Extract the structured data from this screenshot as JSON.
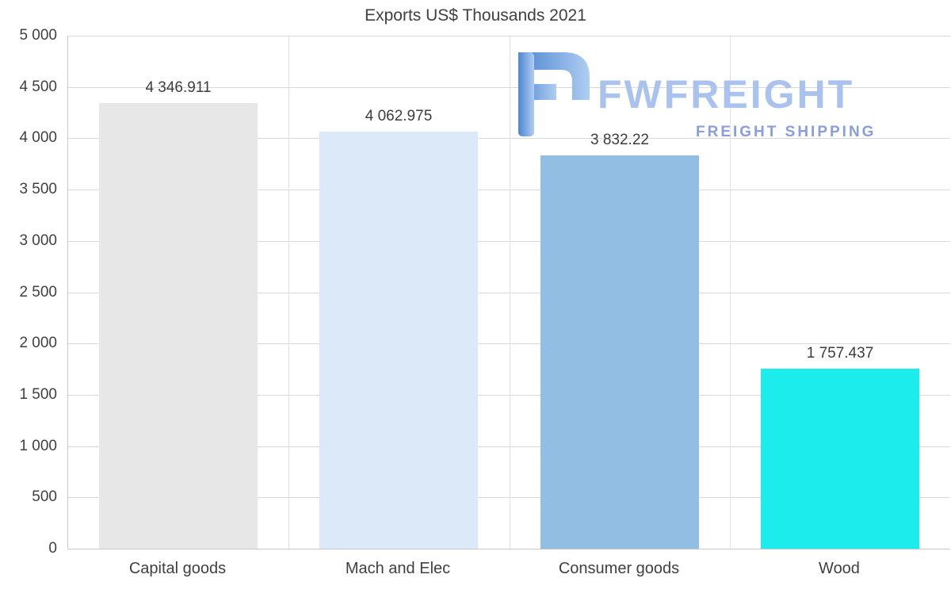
{
  "chart_data": {
    "type": "bar",
    "title": "Exports US$ Thousands 2021",
    "categories": [
      "Capital goods",
      "Mach and Elec",
      "Consumer goods",
      "Wood"
    ],
    "values": [
      4346.911,
      4062.975,
      3832.22,
      1757.437
    ],
    "value_labels": [
      "4 346.911",
      "4 062.975",
      "3 832.22",
      "1 757.437"
    ],
    "bar_colors": [
      "#e7e7e7",
      "#dce9f9",
      "#93bee3",
      "#1cecec"
    ],
    "xlabel": "",
    "ylabel": "",
    "ylim": [
      0,
      5000
    ],
    "ytick_step": 500,
    "ytick_labels": [
      "5 000",
      "4 500",
      "4 000",
      "3 500",
      "3 000",
      "2 500",
      "2 000",
      "1 500",
      "1 000",
      "500",
      "0"
    ],
    "grid": true,
    "legend_position": "none"
  },
  "watermark": {
    "brand": "FWFREIGHT",
    "tagline": "FREIGHT SHIPPING",
    "brand_color": "#a9c3ee",
    "tagline_color": "#8a9ddd"
  },
  "colors": {
    "text": "#404040",
    "gridline": "#d9d9d9",
    "axis_line": "#c9c9c9"
  }
}
